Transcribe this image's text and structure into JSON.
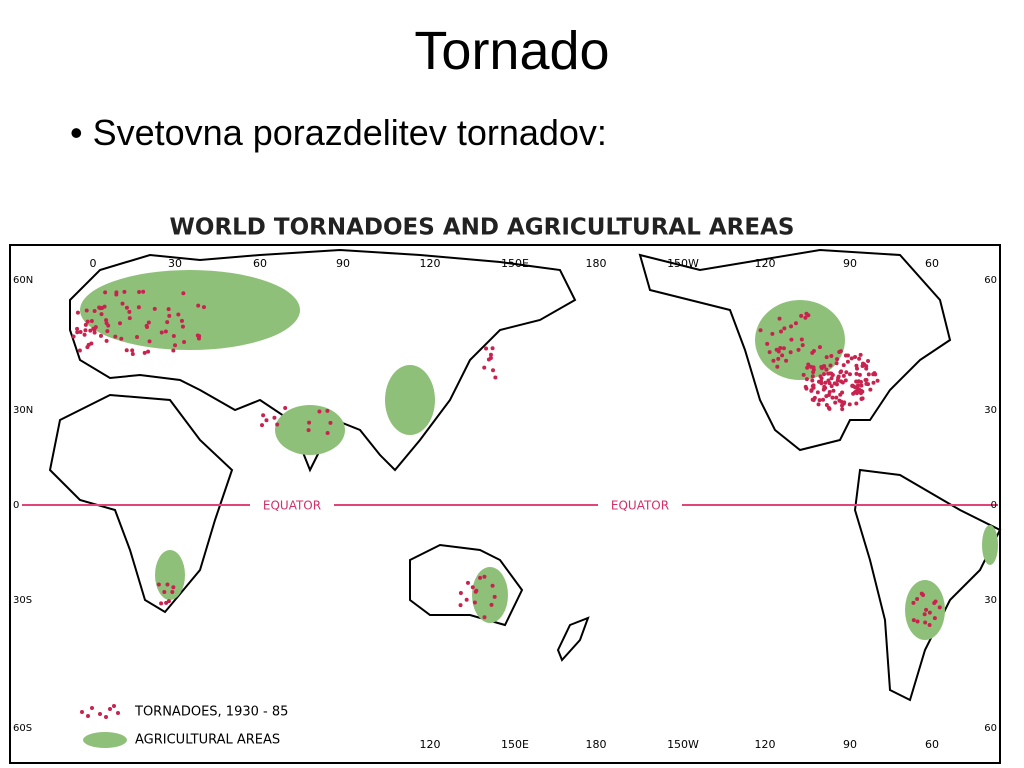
{
  "slide": {
    "title": "Tornado",
    "bullets": [
      "Svetovna porazdelitev tornadov:"
    ]
  },
  "map": {
    "title": "WORLD TORNADOES AND AGRICULTURAL AREAS",
    "top_labels": [
      "0",
      "30",
      "60",
      "90",
      "120",
      "150E",
      "180",
      "150W",
      "120",
      "90",
      "60"
    ],
    "bottom_labels": [
      "120",
      "150E",
      "180",
      "150W",
      "120",
      "90",
      "60"
    ],
    "left_labels": [
      "60N",
      "30N",
      "0",
      "30S",
      "60S"
    ],
    "right_labels": [
      "60",
      "30",
      "0",
      "30",
      "60"
    ],
    "equator_labels": [
      "EQUATOR",
      "EQUATOR"
    ],
    "legend": [
      "TORNADOES, 1930 - 85",
      "AGRICULTURAL AREAS"
    ]
  }
}
